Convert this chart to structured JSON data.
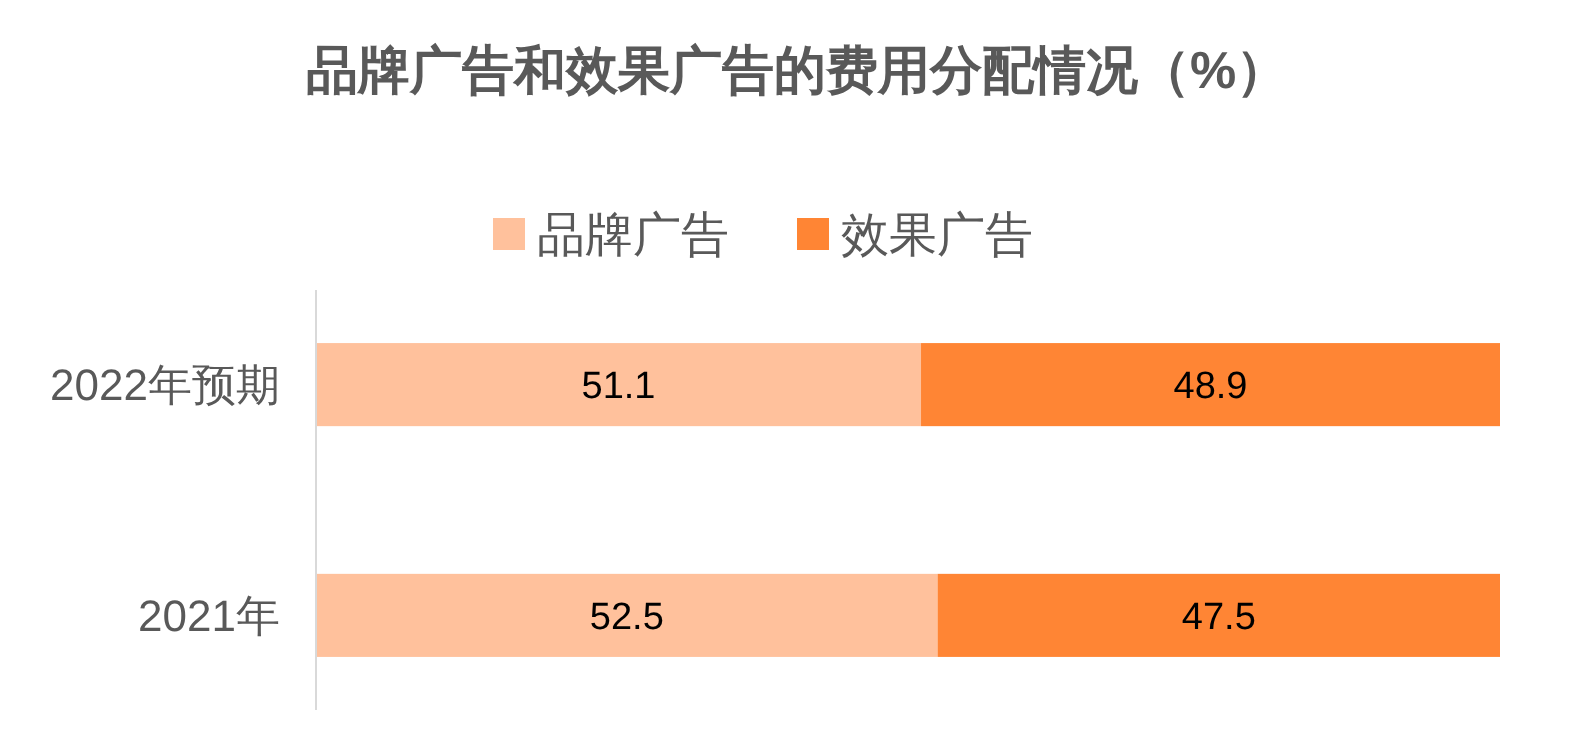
{
  "chart_data": {
    "type": "bar",
    "orientation": "horizontal",
    "stacked": true,
    "title": "品牌广告和效果广告的费用分配情况（%）",
    "categories": [
      "2022年预期",
      "2021年"
    ],
    "series": [
      {
        "name": "品牌广告",
        "color": "#ffc19c",
        "values": [
          51.1,
          52.5
        ]
      },
      {
        "name": "效果广告",
        "color": "#ff8534",
        "values": [
          48.9,
          47.5
        ]
      }
    ],
    "data_labels": true,
    "legend": "top",
    "grid": false
  }
}
